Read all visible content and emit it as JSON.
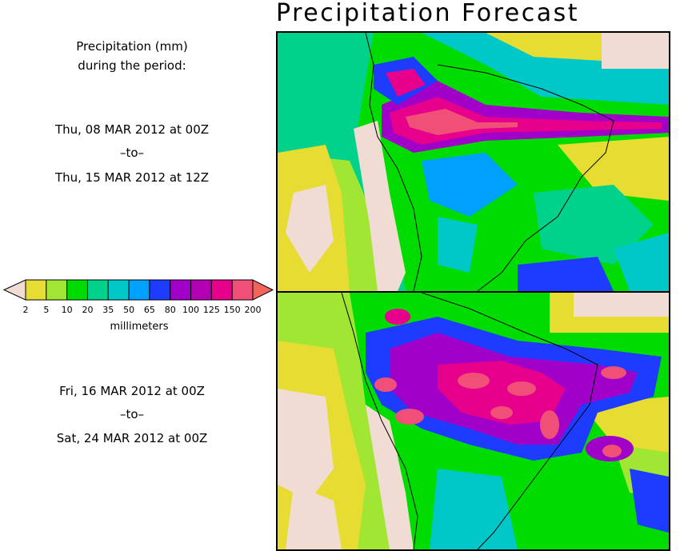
{
  "title": "Precipitation Forecast",
  "description": {
    "line1": "Precipitation (mm)",
    "line2": "during the period:"
  },
  "period1": {
    "start": "Thu, 08 MAR 2012 at 00Z",
    "sep": "–to–",
    "end": "Thu, 15 MAR 2012 at 12Z"
  },
  "period2": {
    "start": "Fri, 16 MAR 2012 at 00Z",
    "sep": "–to–",
    "end": "Sat, 24 MAR 2012 at 00Z"
  },
  "legend": {
    "unit_label": "millimeters",
    "ticks": [
      "2",
      "5",
      "10",
      "20",
      "35",
      "50",
      "65",
      "80",
      "100",
      "125",
      "150",
      "200"
    ],
    "colors": [
      "#f0dcd2",
      "#e6dc32",
      "#a0e632",
      "#00dc00",
      "#00d28c",
      "#00c8c8",
      "#00a0ff",
      "#1e3cff",
      "#a000c8",
      "#b400b4",
      "#e6008c",
      "#f05078",
      "#f0645a"
    ]
  }
}
